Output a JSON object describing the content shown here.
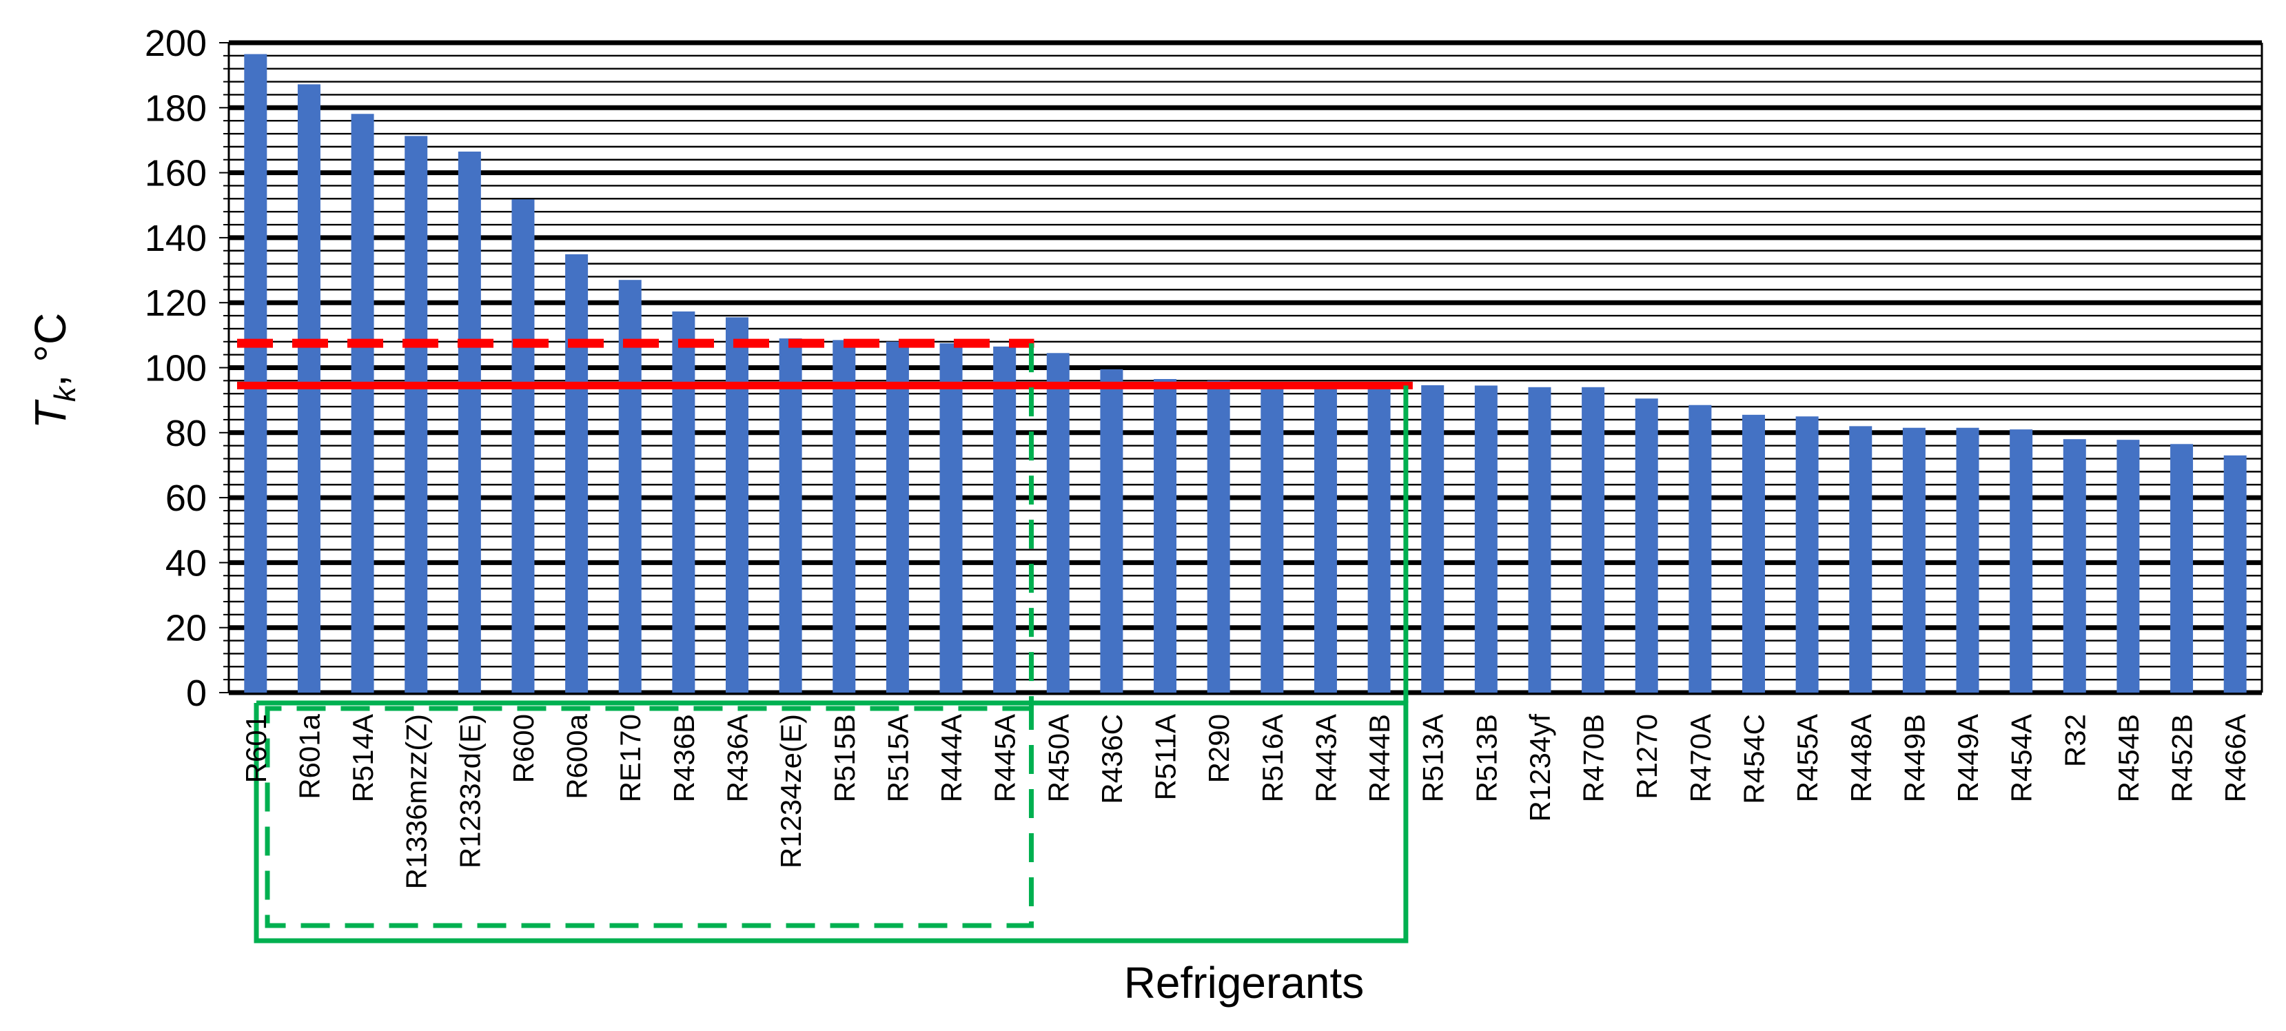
{
  "chart_data": {
    "type": "bar",
    "title": "",
    "xlabel": "Refrigerants",
    "ylabel": "T",
    "ylabel_subscript": "k",
    "ylabel_suffix": ", °C",
    "ylim": [
      0,
      200
    ],
    "y_ticks": [
      0,
      20,
      40,
      60,
      80,
      100,
      120,
      140,
      160,
      180,
      200
    ],
    "grid": true,
    "legend": "none",
    "categories": [
      "R601",
      "R601a",
      "R514A",
      "R1336mzz(Z)",
      "R1233zd(E)",
      "R600",
      "R600a",
      "RE170",
      "R436B",
      "R436A",
      "R1234ze(E)",
      "R515B",
      "R515A",
      "R444A",
      "R445A",
      "R450A",
      "R436C",
      "R511A",
      "R290",
      "R516A",
      "R443A",
      "R444B",
      "R513A",
      "R513B",
      "R1234yf",
      "R470B",
      "R1270",
      "R470A",
      "R454C",
      "R455A",
      "R448A",
      "R449B",
      "R449A",
      "R454A",
      "R32",
      "R454B",
      "R452B",
      "R466A"
    ],
    "values": [
      196.5,
      187.2,
      178.1,
      171.3,
      166.5,
      151.8,
      134.9,
      127.0,
      117.3,
      115.5,
      109.0,
      108.5,
      108.0,
      107.5,
      106.5,
      104.5,
      99.5,
      96.5,
      96.0,
      95.5,
      95.0,
      94.8,
      94.6,
      94.5,
      94.0,
      94.0,
      90.5,
      88.5,
      85.5,
      85.0,
      82.0,
      81.5,
      81.5,
      81.0,
      78.0,
      77.8,
      76.5,
      73.0
    ],
    "reference_lines": [
      {
        "value": 107.5,
        "style": "dashed",
        "color": "#ff0000"
      },
      {
        "value": 94.5,
        "style": "solid",
        "color": "#ff0000"
      }
    ],
    "highlight_groups": [
      {
        "from": "R601",
        "to": "R445A",
        "style": "dashed",
        "color": "#00b050"
      },
      {
        "from": "R601",
        "to": "R444B",
        "style": "solid",
        "color": "#00b050"
      }
    ],
    "colors": {
      "bar": "#4472c4",
      "grid": "#000000",
      "reference": "#ff0000",
      "group": "#00b050"
    }
  }
}
